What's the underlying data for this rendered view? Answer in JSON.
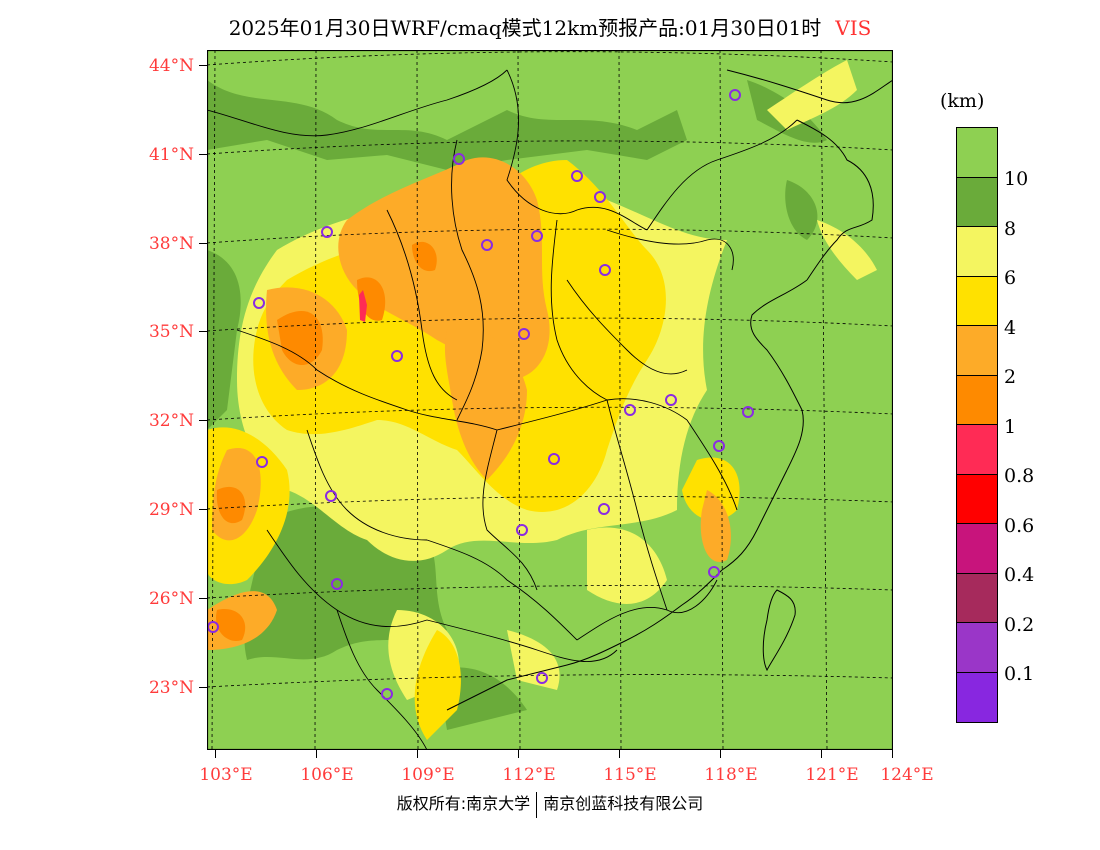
{
  "title": {
    "main": "2025年01月30日WRF/cmaq模式12km预报产品:01月30日01时",
    "variable": "VIS"
  },
  "axes": {
    "lat_labels": [
      "44°N",
      "41°N",
      "38°N",
      "35°N",
      "32°N",
      "29°N",
      "26°N",
      "23°N"
    ],
    "lon_labels": [
      "103°E",
      "106°E",
      "109°E",
      "112°E",
      "115°E",
      "118°E",
      "121°E",
      "124°E"
    ]
  },
  "legend": {
    "unit": "(km)",
    "labels": [
      "10",
      "8",
      "6",
      "4",
      "2",
      "1",
      "0.8",
      "0.6",
      "0.4",
      "0.2",
      "0.1"
    ],
    "colors": [
      "#8ed052",
      "#6aab3a",
      "#f4f560",
      "#ffe100",
      "#fdab28",
      "#fe8a00",
      "#ff2b55",
      "#ff0000",
      "#c8147c",
      "#a62a5c",
      "#9a36c8",
      "#8827e0"
    ]
  },
  "colors": {
    "ocean": "#8ed052",
    "station_marker": "#8a2be2",
    "axis_label": "#ff3b3b"
  },
  "footer": {
    "left": "版权所有:南京大学",
    "right": "南京创蓝科技有限公司"
  }
}
